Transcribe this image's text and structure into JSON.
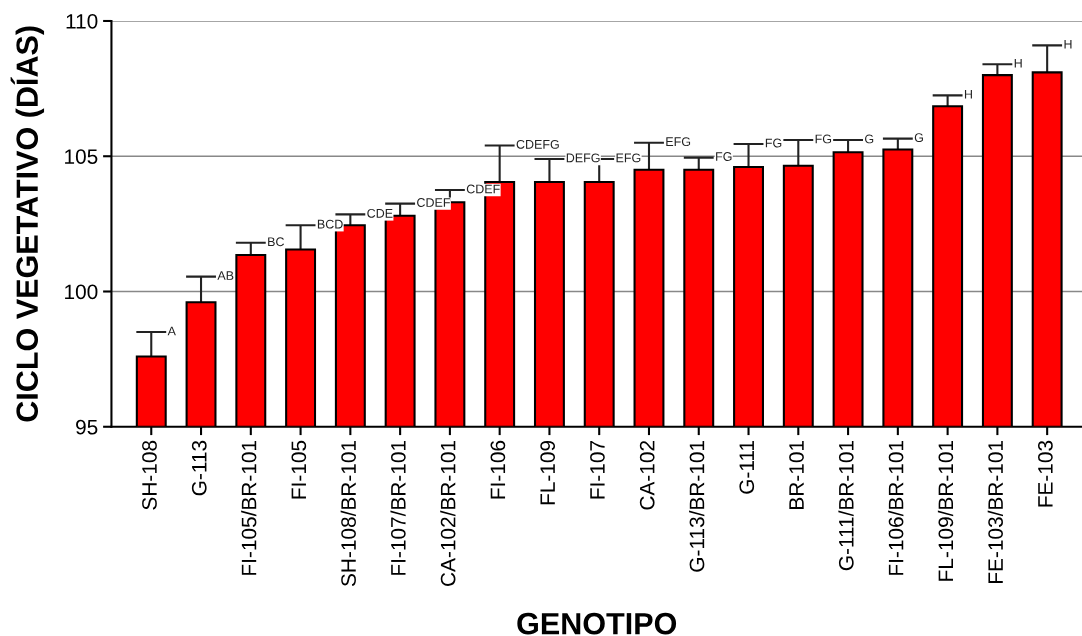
{
  "chart_data": {
    "type": "bar",
    "xlabel": "GENOTIPO",
    "ylabel": "CICLO VEGETATIVO (DÍAS)",
    "categories": [
      "SH-108",
      "G-113",
      "FI-105/BR-101",
      "FI-105",
      "SH-108/BR-101",
      "FI-107/BR-101",
      "CA-102/BR-101",
      "FI-106",
      "FL-109",
      "FI-107",
      "CA-102",
      "G-113/BR-101",
      "G-111",
      "BR-101",
      "G-111/BR-101",
      "FI-106/BR-101",
      "FL-109/BR-101",
      "FE-103/BR-101",
      "FE-103"
    ],
    "values": [
      97.6,
      99.6,
      101.35,
      101.55,
      102.45,
      102.8,
      103.3,
      104.05,
      104.05,
      104.05,
      104.5,
      104.5,
      104.6,
      104.65,
      105.15,
      105.25,
      106.85,
      108.0,
      108.1
    ],
    "errors": [
      [
        97.6,
        98.5
      ],
      [
        99.6,
        100.55
      ],
      [
        101.35,
        101.8
      ],
      [
        101.55,
        102.45
      ],
      [
        102.45,
        102.85
      ],
      [
        102.8,
        103.25
      ],
      [
        103.3,
        103.75
      ],
      [
        104.05,
        105.4
      ],
      [
        104.05,
        104.9
      ],
      [
        104.05,
        104.9
      ],
      [
        104.5,
        105.5
      ],
      [
        104.5,
        104.95
      ],
      [
        104.6,
        105.45
      ],
      [
        104.65,
        105.6
      ],
      [
        105.15,
        105.6
      ],
      [
        105.25,
        105.65
      ],
      [
        106.85,
        107.25
      ],
      [
        108.0,
        108.4
      ],
      [
        108.1,
        109.1
      ]
    ],
    "color": "#ff0000",
    "ylim": [
      95,
      110
    ],
    "yticks": [
      95,
      100,
      105,
      110
    ],
    "grid": "y",
    "annotations": [
      {
        "text": "A",
        "x": "SH-108",
        "y": 98.5
      },
      {
        "text": "AB",
        "x": "G-113",
        "y": 100.55
      },
      {
        "text": "BC",
        "x": "FI-105/BR-101",
        "y": 101.8
      },
      {
        "text": "BCD",
        "x": "FI-105",
        "y": 102.45
      },
      {
        "text": "CDE",
        "x": "SH-108/BR-101",
        "y": 102.85
      },
      {
        "text": "CDEF",
        "x": "FI-107/BR-101",
        "y": 103.25
      },
      {
        "text": "CDEF",
        "x": "CA-102/BR-101",
        "y": 103.75
      },
      {
        "text": "CDEFG",
        "x": "FI-106",
        "y": 105.4
      },
      {
        "text": "DEFG",
        "x": "FL-109",
        "y": 104.9
      },
      {
        "text": "EFG",
        "x": "FI-107",
        "y": 104.9
      },
      {
        "text": "EFG",
        "x": "CA-102",
        "y": 105.5
      },
      {
        "text": "FG",
        "x": "G-113/BR-101",
        "y": 104.95
      },
      {
        "text": "FG",
        "x": "G-111",
        "y": 105.45
      },
      {
        "text": "FG",
        "x": "BR-101",
        "y": 105.6
      },
      {
        "text": "G",
        "x": "G-111/BR-101",
        "y": 105.6
      },
      {
        "text": "G",
        "x": "FI-106/BR-101",
        "y": 105.65
      },
      {
        "text": "H",
        "x": "FL-109/BR-101",
        "y": 107.25
      },
      {
        "text": "H",
        "x": "FE-103/BR-101",
        "y": 108.4
      },
      {
        "text": "H",
        "x": "FE-103",
        "y": 109.1
      }
    ]
  }
}
